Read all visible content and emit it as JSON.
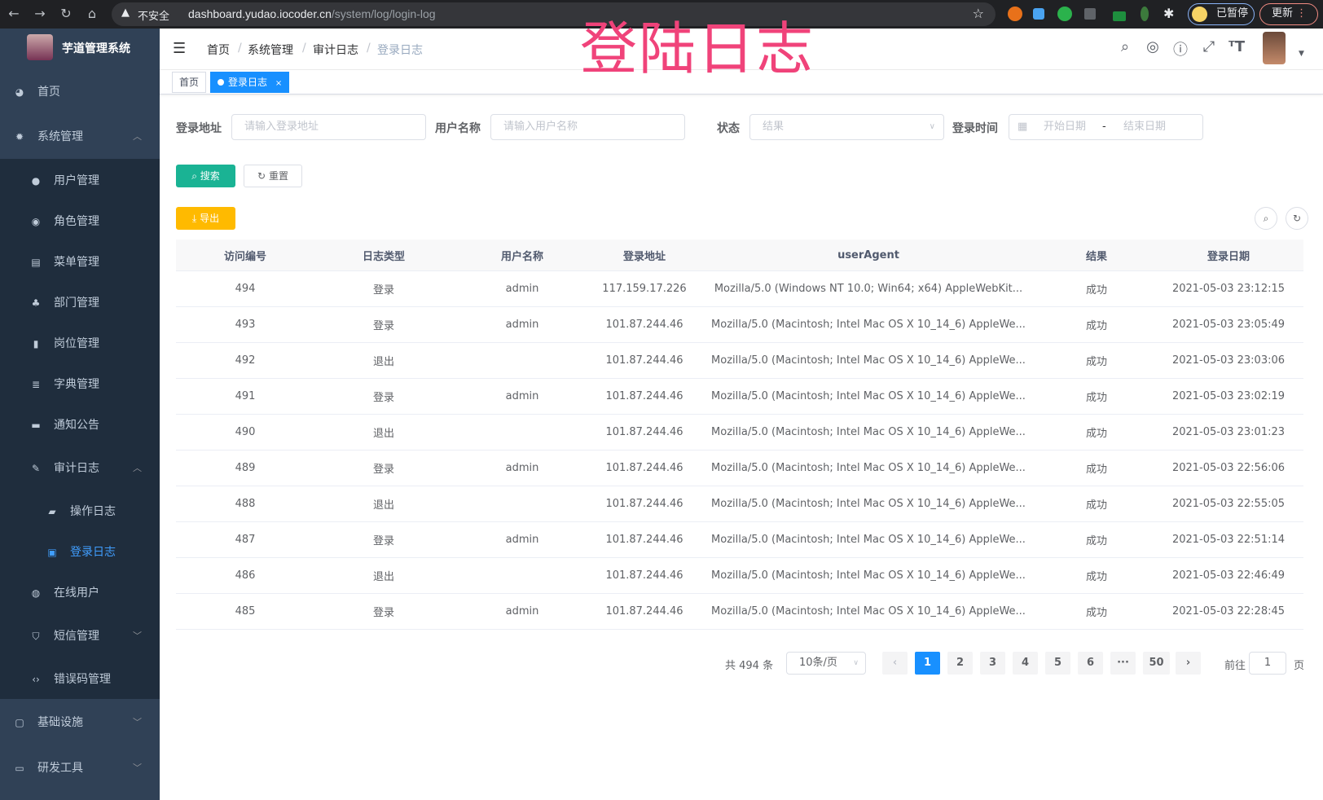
{
  "browser": {
    "security_label": "不安全",
    "url_host": "dashboard.yudao.iocoder.cn",
    "url_path": "/system/log/login-log",
    "profile_label": "已暂停",
    "update_label": "更新"
  },
  "overlay_title": "登陆日志",
  "sidebar": {
    "app_title": "芋道管理系统",
    "items": [
      {
        "label": "首页",
        "icon": "dashboard-icon"
      },
      {
        "label": "系统管理",
        "icon": "gear-icon",
        "expanded": true
      },
      {
        "label": "用户管理",
        "icon": "user-icon"
      },
      {
        "label": "角色管理",
        "icon": "peoples-icon"
      },
      {
        "label": "菜单管理",
        "icon": "tree-table-icon"
      },
      {
        "label": "部门管理",
        "icon": "tree-icon"
      },
      {
        "label": "岗位管理",
        "icon": "post-icon"
      },
      {
        "label": "字典管理",
        "icon": "dict-icon"
      },
      {
        "label": "通知公告",
        "icon": "message-icon"
      },
      {
        "label": "审计日志",
        "icon": "log-icon",
        "expanded": true
      },
      {
        "label": "操作日志",
        "icon": "form-icon"
      },
      {
        "label": "登录日志",
        "icon": "logininfor-icon",
        "active": true
      },
      {
        "label": "在线用户",
        "icon": "online-icon"
      },
      {
        "label": "短信管理",
        "icon": "shield-icon"
      },
      {
        "label": "错误码管理",
        "icon": "code-icon"
      },
      {
        "label": "基础设施",
        "icon": "monitor-icon"
      },
      {
        "label": "研发工具",
        "icon": "tool-icon"
      }
    ]
  },
  "header": {
    "breadcrumb": [
      "首页",
      "系统管理",
      "审计日志",
      "登录日志"
    ]
  },
  "tags": [
    {
      "label": "首页"
    },
    {
      "label": "登录日志",
      "active": true
    }
  ],
  "filters": {
    "address_label": "登录地址",
    "address_placeholder": "请输入登录地址",
    "username_label": "用户名称",
    "username_placeholder": "请输入用户名称",
    "status_label": "状态",
    "status_placeholder": "结果",
    "time_label": "登录时间",
    "start_placeholder": "开始日期",
    "end_placeholder": "结束日期",
    "range_separator": "-",
    "search_label": "搜索",
    "reset_label": "重置",
    "export_label": "导出"
  },
  "colors": {
    "primary": "#1890ff",
    "search": "#1ab394",
    "export": "#ffba00",
    "sidebar": "#304156",
    "submenu": "#1f2d3d"
  },
  "table": {
    "columns": [
      "访问编号",
      "日志类型",
      "用户名称",
      "登录地址",
      "userAgent",
      "结果",
      "登录日期"
    ],
    "rows": [
      [
        "494",
        "登录",
        "admin",
        "117.159.17.226",
        "Mozilla/5.0 (Windows NT 10.0; Win64; x64) AppleWebKit...",
        "成功",
        "2021-05-03 23:12:15"
      ],
      [
        "493",
        "登录",
        "admin",
        "101.87.244.46",
        "Mozilla/5.0 (Macintosh; Intel Mac OS X 10_14_6) AppleWe...",
        "成功",
        "2021-05-03 23:05:49"
      ],
      [
        "492",
        "退出",
        "",
        "101.87.244.46",
        "Mozilla/5.0 (Macintosh; Intel Mac OS X 10_14_6) AppleWe...",
        "成功",
        "2021-05-03 23:03:06"
      ],
      [
        "491",
        "登录",
        "admin",
        "101.87.244.46",
        "Mozilla/5.0 (Macintosh; Intel Mac OS X 10_14_6) AppleWe...",
        "成功",
        "2021-05-03 23:02:19"
      ],
      [
        "490",
        "退出",
        "",
        "101.87.244.46",
        "Mozilla/5.0 (Macintosh; Intel Mac OS X 10_14_6) AppleWe...",
        "成功",
        "2021-05-03 23:01:23"
      ],
      [
        "489",
        "登录",
        "admin",
        "101.87.244.46",
        "Mozilla/5.0 (Macintosh; Intel Mac OS X 10_14_6) AppleWe...",
        "成功",
        "2021-05-03 22:56:06"
      ],
      [
        "488",
        "退出",
        "",
        "101.87.244.46",
        "Mozilla/5.0 (Macintosh; Intel Mac OS X 10_14_6) AppleWe...",
        "成功",
        "2021-05-03 22:55:05"
      ],
      [
        "487",
        "登录",
        "admin",
        "101.87.244.46",
        "Mozilla/5.0 (Macintosh; Intel Mac OS X 10_14_6) AppleWe...",
        "成功",
        "2021-05-03 22:51:14"
      ],
      [
        "486",
        "退出",
        "",
        "101.87.244.46",
        "Mozilla/5.0 (Macintosh; Intel Mac OS X 10_14_6) AppleWe...",
        "成功",
        "2021-05-03 22:46:49"
      ],
      [
        "485",
        "登录",
        "admin",
        "101.87.244.46",
        "Mozilla/5.0 (Macintosh; Intel Mac OS X 10_14_6) AppleWe...",
        "成功",
        "2021-05-03 22:28:45"
      ]
    ]
  },
  "pagination": {
    "total_label": "共 494 条",
    "page_size": "10条/页",
    "pages": [
      "1",
      "2",
      "3",
      "4",
      "5",
      "6",
      "···",
      "50"
    ],
    "current": "1",
    "goto_label": "前往",
    "goto_value": "1",
    "page_suffix": "页"
  }
}
